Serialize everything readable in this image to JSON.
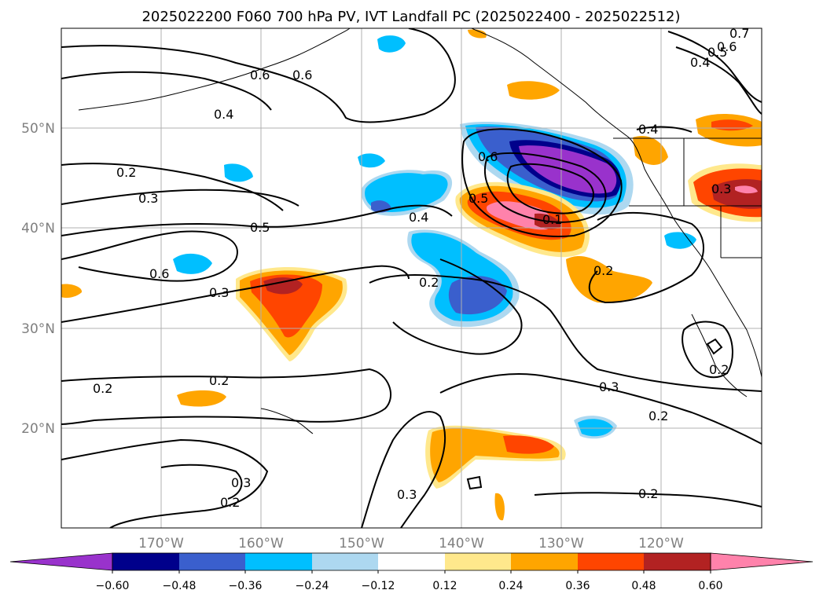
{
  "title": "2025022200 F060 700 hPa PV, IVT Landfall PC (2025022400 - 2025022512)",
  "map": {
    "lon_range": [
      -180,
      -110
    ],
    "lat_range": [
      10,
      60
    ],
    "lon_ticks": [
      "170°W",
      "160°W",
      "150°W",
      "140°W",
      "130°W",
      "120°W"
    ],
    "lat_ticks": [
      "50°N",
      "40°N",
      "30°N",
      "20°N"
    ],
    "grid": true,
    "region": "North Pacific / western North America"
  },
  "colorbar": {
    "extend": "both",
    "tick_labels": [
      "−0.60",
      "−0.48",
      "−0.36",
      "−0.24",
      "−0.12",
      "0.12",
      "0.24",
      "0.36",
      "0.48",
      "0.60"
    ],
    "colors": [
      "#9932cc",
      "#00008b",
      "#3a5fcd",
      "#00bfff",
      "#add8f0",
      "#ffffff",
      "#ffe88c",
      "#ffa500",
      "#ff4500",
      "#b22222",
      "#ff82ab"
    ]
  },
  "contour_labels": [
    "0.6",
    "0.6",
    "0.4",
    "0.2",
    "0.3",
    "0.5",
    "0.6",
    "0.3",
    "0.2",
    "0.2",
    "0.3",
    "0.2",
    "0.4",
    "0.2",
    "0.6",
    "0.5",
    "0.1",
    "0.2",
    "0.3",
    "0.2",
    "0.2",
    "0.3",
    "0.2",
    "0.4",
    "0.3",
    "0.4",
    "0.5",
    "0.6",
    "0.7"
  ]
}
